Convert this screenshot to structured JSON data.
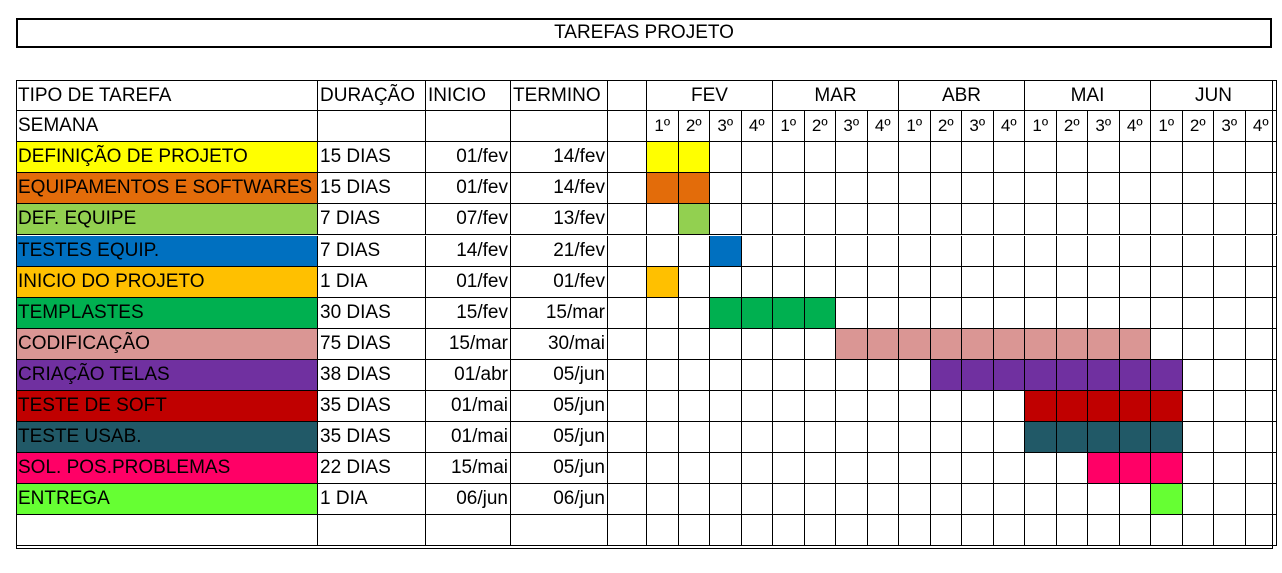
{
  "title": "TAREFAS PROJETO",
  "chart_data": {
    "type": "table",
    "header": {
      "task": "TIPO DE TAREFA",
      "duration": "DURAÇÃO",
      "start": "INICIO",
      "end": "TERMINO",
      "week_row": "SEMANA"
    },
    "months": [
      "FEV",
      "MAR",
      "ABR",
      "MAI",
      "JUN"
    ],
    "weeks": [
      "1º",
      "2º",
      "3º",
      "4º"
    ],
    "tasks": [
      {
        "name": "DEFINIÇÃO DE PROJETO",
        "duration": "15 DIAS",
        "start": "01/fev",
        "end": "14/fev",
        "color": "#ffff00",
        "first_week": 0,
        "last_week": 1
      },
      {
        "name": "EQUIPAMENTOS E SOFTWARES",
        "duration": "15 DIAS",
        "start": "01/fev",
        "end": "14/fev",
        "color": "#e36c0a",
        "first_week": 0,
        "last_week": 1
      },
      {
        "name": "DEF. EQUIPE",
        "duration": "7 DIAS",
        "start": "07/fev",
        "end": "13/fev",
        "color": "#92d050",
        "first_week": 1,
        "last_week": 1
      },
      {
        "name": "TESTES EQUIP.",
        "duration": "7 DIAS",
        "start": "14/fev",
        "end": "21/fev",
        "color": "#0070c0",
        "first_week": 2,
        "last_week": 2
      },
      {
        "name": "INICIO DO PROJETO",
        "duration": "1 DIA",
        "start": "01/fev",
        "end": "01/fev",
        "color": "#ffc000",
        "first_week": 0,
        "last_week": 0
      },
      {
        "name": "TEMPLASTES",
        "duration": "30 DIAS",
        "start": "15/fev",
        "end": "15/mar",
        "color": "#00b050",
        "first_week": 2,
        "last_week": 5
      },
      {
        "name": "CODIFICAÇÃO",
        "duration": "75 DIAS",
        "start": "15/mar",
        "end": "30/mai",
        "color": "#da9694",
        "first_week": 6,
        "last_week": 15
      },
      {
        "name": "CRIAÇÃO TELAS",
        "duration": "38 DIAS",
        "start": "01/abr",
        "end": "05/jun",
        "color": "#7030a0",
        "first_week": 9,
        "last_week": 16
      },
      {
        "name": "TESTE DE SOFT",
        "duration": "35 DIAS",
        "start": "01/mai",
        "end": "05/jun",
        "color": "#c00000",
        "first_week": 12,
        "last_week": 16
      },
      {
        "name": "TESTE USAB.",
        "duration": "35 DIAS",
        "start": "01/mai",
        "end": "05/jun",
        "color": "#215967",
        "first_week": 12,
        "last_week": 16
      },
      {
        "name": "SOL. POS.PROBLEMAS",
        "duration": "22 DIAS",
        "start": "15/mai",
        "end": "05/jun",
        "color": "#ff0066",
        "first_week": 14,
        "last_week": 16
      },
      {
        "name": "ENTREGA",
        "duration": "1 DIA",
        "start": "06/jun",
        "end": "06/jun",
        "color": "#66ff33",
        "first_week": 16,
        "last_week": 16
      }
    ]
  }
}
